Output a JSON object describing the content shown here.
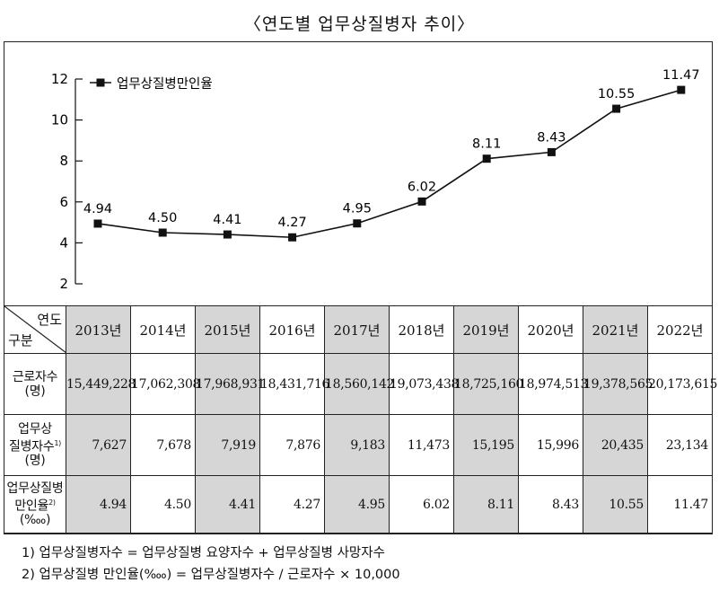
{
  "title": "〈연도별 업무상질병자 추이〉",
  "chart_data": {
    "type": "line",
    "legend": "업무상질병만인율",
    "legend_position": "top-left",
    "y_ticks": [
      "2",
      "4",
      "6",
      "8",
      "10",
      "12"
    ],
    "ylim": [
      2,
      12
    ],
    "categories": [
      "2013년",
      "2014년",
      "2015년",
      "2016년",
      "2017년",
      "2018년",
      "2019년",
      "2020년",
      "2021년",
      "2022년"
    ],
    "values": [
      4.94,
      4.5,
      4.41,
      4.27,
      4.95,
      6.02,
      8.11,
      8.43,
      10.55,
      11.47
    ],
    "value_labels": [
      "4.94",
      "4.50",
      "4.41",
      "4.27",
      "4.95",
      "6.02",
      "8.11",
      "8.43",
      "10.55",
      "11.47"
    ]
  },
  "table": {
    "corner_top": "연도",
    "corner_bottom": "구분",
    "rows": [
      {
        "label_lines": [
          "근로자수",
          "(명)"
        ],
        "cells": [
          "15,449,228",
          "17,062,308",
          "17,968,931",
          "18,431,716",
          "18,560,142",
          "19,073,438",
          "18,725,160",
          "18,974,513",
          "19,378,565",
          "20,173,615"
        ]
      },
      {
        "label_lines": [
          "업무상",
          "질병자수",
          "(명)"
        ],
        "label_sup": "1)",
        "cells": [
          "7,627",
          "7,678",
          "7,919",
          "7,876",
          "9,183",
          "11,473",
          "15,195",
          "15,996",
          "20,435",
          "23,134"
        ]
      },
      {
        "label_lines": [
          "업무상질병",
          "만인율",
          "(‱)"
        ],
        "label_sup": "2)",
        "cells": [
          "4.94",
          "4.50",
          "4.41",
          "4.27",
          "4.95",
          "6.02",
          "8.11",
          "8.43",
          "10.55",
          "11.47"
        ]
      }
    ]
  },
  "notes": [
    "1) 업무상질병자수 = 업무상질병 요양자수 + 업무상질병 사망자수",
    "2) 업무상질병 만인율(‱) = 업무상질병자수 / 근로자수 × 10,000"
  ]
}
